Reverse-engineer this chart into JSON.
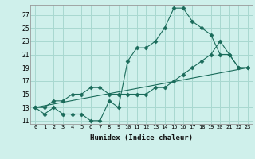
{
  "xlabel": "Humidex (Indice chaleur)",
  "bg_color": "#cff0eb",
  "grid_color": "#a8d8d0",
  "line_color": "#1a6b5a",
  "ylim": [
    11,
    28
  ],
  "xlim": [
    -0.5,
    23.5
  ],
  "yticks": [
    11,
    13,
    15,
    17,
    19,
    21,
    23,
    25,
    27
  ],
  "xtick_labels": [
    "0",
    "1",
    "2",
    "3",
    "4",
    "5",
    "6",
    "7",
    "8",
    "9",
    "10",
    "11",
    "12",
    "13",
    "14",
    "15",
    "16",
    "17",
    "18",
    "19",
    "20",
    "21",
    "22",
    "23"
  ],
  "series1_x": [
    0,
    1,
    2,
    3,
    4,
    5,
    6,
    7,
    8,
    9,
    10,
    11,
    12,
    13,
    14,
    15,
    16,
    17,
    18,
    19,
    20,
    21,
    22,
    23
  ],
  "series1_y": [
    13,
    12,
    13,
    12,
    12,
    12,
    11,
    11,
    14,
    13,
    20,
    22,
    22,
    23,
    25,
    28,
    28,
    26,
    25,
    24,
    21,
    21,
    19,
    19
  ],
  "series2_x": [
    0,
    1,
    2,
    3,
    4,
    5,
    6,
    7,
    8,
    9,
    10,
    11,
    12,
    13,
    14,
    15,
    16,
    17,
    18,
    19,
    20,
    21,
    22,
    23
  ],
  "series2_y": [
    13,
    13,
    14,
    14,
    15,
    15,
    16,
    16,
    15,
    15,
    15,
    15,
    15,
    16,
    16,
    17,
    18,
    19,
    20,
    21,
    23,
    21,
    19,
    19
  ],
  "series3_x": [
    0,
    23
  ],
  "series3_y": [
    13,
    19
  ]
}
